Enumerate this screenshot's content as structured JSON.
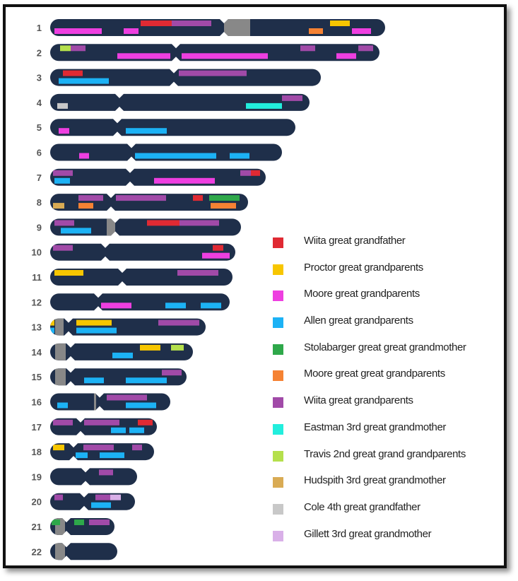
{
  "colors": {
    "chromosome": "#1f2f4a",
    "centromere": "#888888",
    "label": "#555555",
    "frame": "#111111"
  },
  "legend": [
    {
      "key": "wiita_gf",
      "label": "Wiita great grandfather",
      "color": "#e02a33"
    },
    {
      "key": "proctor_gp",
      "label": "Proctor great grandparents",
      "color": "#f7c600"
    },
    {
      "key": "moore_gp",
      "label": "Moore great grandparents",
      "color": "#ee3fe0"
    },
    {
      "key": "allen_gp",
      "label": "Allen great grandparents",
      "color": "#1cb2f5"
    },
    {
      "key": "stolabarger_ggm",
      "label": "Stolabarger great great grandmother",
      "color": "#2ea84a"
    },
    {
      "key": "moore_ggp",
      "label": "Moore great great grandparents",
      "color": "#f58233"
    },
    {
      "key": "wiita_gp",
      "label": "Wiita great grandparents",
      "color": "#a14aa8"
    },
    {
      "key": "eastman_3gm",
      "label": "Eastman 3rd great grandmother",
      "color": "#22eedd"
    },
    {
      "key": "travis_2ggp",
      "label": "Travis 2nd great grand grandparents",
      "color": "#b5e04c"
    },
    {
      "key": "hudspith_3gm",
      "label": "Hudspith 3rd great grandmother",
      "color": "#d9ab54"
    },
    {
      "key": "cole_4gf",
      "label": "Cole 4th great grandfather",
      "color": "#c8c8c8"
    },
    {
      "key": "gillett_3gm",
      "label": "Gillett 3rd great grandmother",
      "color": "#d9b0e8"
    }
  ],
  "chromosomes": [
    {
      "label": "1",
      "length": 474,
      "centromere": 246,
      "block": [
        246,
        37
      ],
      "segments": [
        {
          "key": "wiita_gf",
          "start": 128,
          "end": 172,
          "lane": "top"
        },
        {
          "key": "wiita_gp",
          "start": 172,
          "end": 228,
          "lane": "top"
        },
        {
          "key": "moore_gp",
          "start": 6,
          "end": 73,
          "lane": "bottom"
        },
        {
          "key": "moore_gp",
          "start": 104,
          "end": 125,
          "lane": "bottom"
        },
        {
          "key": "proctor_gp",
          "start": 396,
          "end": 424,
          "lane": "top"
        },
        {
          "key": "moore_ggp",
          "start": 366,
          "end": 386,
          "lane": "bottom"
        },
        {
          "key": "moore_gp",
          "start": 427,
          "end": 454,
          "lane": "bottom"
        }
      ]
    },
    {
      "label": "2",
      "length": 466,
      "centromere": 178,
      "segments": [
        {
          "key": "travis_2ggp",
          "start": 14,
          "end": 29,
          "lane": "top"
        },
        {
          "key": "wiita_gp",
          "start": 29,
          "end": 50,
          "lane": "top"
        },
        {
          "key": "moore_gp",
          "start": 95,
          "end": 170,
          "lane": "bottom"
        },
        {
          "key": "moore_gp",
          "start": 186,
          "end": 308,
          "lane": "bottom"
        },
        {
          "key": "wiita_gp",
          "start": 354,
          "end": 375,
          "lane": "top"
        },
        {
          "key": "wiita_gp",
          "start": 436,
          "end": 457,
          "lane": "top"
        },
        {
          "key": "moore_gp",
          "start": 405,
          "end": 433,
          "lane": "bottom"
        }
      ]
    },
    {
      "label": "3",
      "length": 383,
      "centromere": 175,
      "segments": [
        {
          "key": "wiita_gf",
          "start": 18,
          "end": 46,
          "lane": "top"
        },
        {
          "key": "allen_gp",
          "start": 12,
          "end": 83,
          "lane": "bottom"
        },
        {
          "key": "wiita_gp",
          "start": 182,
          "end": 278,
          "lane": "top"
        }
      ]
    },
    {
      "label": "4",
      "length": 367,
      "centromere": 98,
      "segments": [
        {
          "key": "cole_4gf",
          "start": 10,
          "end": 25,
          "lane": "bottom"
        },
        {
          "key": "eastman_3gm",
          "start": 277,
          "end": 328,
          "lane": "bottom"
        },
        {
          "key": "wiita_gp",
          "start": 328,
          "end": 357,
          "lane": "top"
        }
      ]
    },
    {
      "label": "5",
      "length": 347,
      "centromere": 95,
      "segments": [
        {
          "key": "moore_gp",
          "start": 12,
          "end": 27,
          "lane": "bottom"
        },
        {
          "key": "allen_gp",
          "start": 107,
          "end": 165,
          "lane": "bottom"
        }
      ]
    },
    {
      "label": "6",
      "length": 328,
      "centromere": 115,
      "segments": [
        {
          "key": "moore_gp",
          "start": 41,
          "end": 55,
          "lane": "bottom"
        },
        {
          "key": "allen_gp",
          "start": 120,
          "end": 235,
          "lane": "bottom"
        },
        {
          "key": "allen_gp",
          "start": 254,
          "end": 282,
          "lane": "bottom"
        }
      ]
    },
    {
      "label": "7",
      "length": 305,
      "centromere": 113,
      "segments": [
        {
          "key": "wiita_gp",
          "start": 4,
          "end": 32,
          "lane": "top"
        },
        {
          "key": "allen_gp",
          "start": 6,
          "end": 28,
          "lane": "bottom"
        },
        {
          "key": "moore_gp",
          "start": 147,
          "end": 233,
          "lane": "bottom"
        },
        {
          "key": "wiita_gp",
          "start": 269,
          "end": 284,
          "lane": "top"
        },
        {
          "key": "wiita_gf",
          "start": 284,
          "end": 297,
          "lane": "top"
        }
      ]
    },
    {
      "label": "8",
      "length": 280,
      "centromere": 86,
      "segments": [
        {
          "key": "hudspith_3gm",
          "start": 4,
          "end": 20,
          "lane": "bottom"
        },
        {
          "key": "wiita_gp",
          "start": 40,
          "end": 75,
          "lane": "top"
        },
        {
          "key": "moore_ggp",
          "start": 40,
          "end": 61,
          "lane": "bottom"
        },
        {
          "key": "wiita_gp",
          "start": 93,
          "end": 164,
          "lane": "top"
        },
        {
          "key": "wiita_gf",
          "start": 202,
          "end": 216,
          "lane": "top"
        },
        {
          "key": "stolabarger_ggm",
          "start": 225,
          "end": 268,
          "lane": "top"
        },
        {
          "key": "moore_ggp",
          "start": 227,
          "end": 263,
          "lane": "bottom"
        }
      ]
    },
    {
      "label": "9",
      "length": 270,
      "centromere": 92,
      "block": [
        80,
        12
      ],
      "segments": [
        {
          "key": "wiita_gp",
          "start": 6,
          "end": 34,
          "lane": "top"
        },
        {
          "key": "allen_gp",
          "start": 15,
          "end": 58,
          "lane": "bottom"
        },
        {
          "key": "wiita_gf",
          "start": 137,
          "end": 183,
          "lane": "top"
        },
        {
          "key": "wiita_gp",
          "start": 183,
          "end": 239,
          "lane": "top"
        }
      ]
    },
    {
      "label": "10",
      "length": 262,
      "centromere": 78,
      "segments": [
        {
          "key": "wiita_gp",
          "start": 4,
          "end": 32,
          "lane": "top"
        },
        {
          "key": "wiita_gf",
          "start": 230,
          "end": 245,
          "lane": "top"
        },
        {
          "key": "moore_gp",
          "start": 215,
          "end": 254,
          "lane": "bottom"
        }
      ]
    },
    {
      "label": "11",
      "length": 258,
      "centromere": 102,
      "segments": [
        {
          "key": "proctor_gp",
          "start": 6,
          "end": 47,
          "lane": "top"
        },
        {
          "key": "wiita_gp",
          "start": 180,
          "end": 238,
          "lane": "top"
        }
      ]
    },
    {
      "label": "12",
      "length": 254,
      "centromere": 68,
      "segments": [
        {
          "key": "moore_gp",
          "start": 72,
          "end": 115,
          "lane": "bottom"
        },
        {
          "key": "allen_gp",
          "start": 163,
          "end": 192,
          "lane": "bottom"
        },
        {
          "key": "allen_gp",
          "start": 213,
          "end": 242,
          "lane": "bottom"
        }
      ]
    },
    {
      "label": "13",
      "length": 220,
      "centromere": 26,
      "block": [
        7,
        12
      ],
      "segments": [
        {
          "key": "proctor_gp",
          "start": 0,
          "end": 6,
          "lane": "top"
        },
        {
          "key": "proctor_gp",
          "start": 37,
          "end": 87,
          "lane": "top"
        },
        {
          "key": "allen_gp",
          "start": 0,
          "end": 6,
          "lane": "bottom"
        },
        {
          "key": "allen_gp",
          "start": 37,
          "end": 94,
          "lane": "bottom"
        },
        {
          "key": "wiita_gp",
          "start": 153,
          "end": 211,
          "lane": "top"
        }
      ]
    },
    {
      "label": "14",
      "length": 202,
      "centromere": 29,
      "block": [
        7,
        15
      ],
      "segments": [
        {
          "key": "proctor_gp",
          "start": 127,
          "end": 156,
          "lane": "top"
        },
        {
          "key": "travis_2ggp",
          "start": 171,
          "end": 189,
          "lane": "top"
        },
        {
          "key": "allen_gp",
          "start": 88,
          "end": 117,
          "lane": "bottom"
        }
      ]
    },
    {
      "label": "15",
      "length": 193,
      "centromere": 29,
      "block": [
        7,
        15
      ],
      "segments": [
        {
          "key": "wiita_gp",
          "start": 158,
          "end": 186,
          "lane": "top"
        },
        {
          "key": "allen_gp",
          "start": 48,
          "end": 76,
          "lane": "bottom"
        },
        {
          "key": "allen_gp",
          "start": 107,
          "end": 165,
          "lane": "bottom"
        }
      ]
    },
    {
      "label": "16",
      "length": 170,
      "centromere": 70,
      "block": [
        62,
        3
      ],
      "segments": [
        {
          "key": "wiita_gp",
          "start": 80,
          "end": 137,
          "lane": "top"
        },
        {
          "key": "allen_gp",
          "start": 10,
          "end": 25,
          "lane": "bottom"
        },
        {
          "key": "allen_gp",
          "start": 107,
          "end": 150,
          "lane": "bottom"
        }
      ]
    },
    {
      "label": "17",
      "length": 151,
      "centromere": 43,
      "segments": [
        {
          "key": "wiita_gp",
          "start": 4,
          "end": 32,
          "lane": "top"
        },
        {
          "key": "wiita_gp",
          "start": 48,
          "end": 98,
          "lane": "top"
        },
        {
          "key": "wiita_gf",
          "start": 124,
          "end": 145,
          "lane": "top"
        },
        {
          "key": "allen_gp",
          "start": 86,
          "end": 107,
          "lane": "bottom"
        },
        {
          "key": "allen_gp",
          "start": 112,
          "end": 133,
          "lane": "bottom"
        }
      ]
    },
    {
      "label": "18",
      "length": 147,
      "centromere": 33,
      "segments": [
        {
          "key": "proctor_gp",
          "start": 4,
          "end": 20,
          "lane": "top"
        },
        {
          "key": "wiita_gp",
          "start": 47,
          "end": 90,
          "lane": "top"
        },
        {
          "key": "wiita_gp",
          "start": 116,
          "end": 130,
          "lane": "top"
        },
        {
          "key": "allen_gp",
          "start": 36,
          "end": 53,
          "lane": "bottom"
        },
        {
          "key": "allen_gp",
          "start": 70,
          "end": 105,
          "lane": "bottom"
        }
      ]
    },
    {
      "label": "19",
      "length": 123,
      "centromere": 50,
      "segments": [
        {
          "key": "wiita_gp",
          "start": 69,
          "end": 89,
          "lane": "top"
        }
      ]
    },
    {
      "label": "20",
      "length": 120,
      "centromere": 48,
      "segments": [
        {
          "key": "wiita_gp",
          "start": 6,
          "end": 18,
          "lane": "top"
        },
        {
          "key": "wiita_gp",
          "start": 64,
          "end": 85,
          "lane": "top"
        },
        {
          "key": "gillett_3gm",
          "start": 85,
          "end": 100,
          "lane": "top"
        },
        {
          "key": "allen_gp",
          "start": 58,
          "end": 86,
          "lane": "bottom"
        }
      ]
    },
    {
      "label": "21",
      "length": 91,
      "centromere": 23,
      "block": [
        7,
        14
      ],
      "segments": [
        {
          "key": "stolabarger_ggm",
          "start": 2,
          "end": 14,
          "lane": "top"
        },
        {
          "key": "stolabarger_ggm",
          "start": 34,
          "end": 48,
          "lane": "top"
        },
        {
          "key": "wiita_gp",
          "start": 55,
          "end": 84,
          "lane": "top"
        }
      ]
    },
    {
      "label": "22",
      "length": 95,
      "centromere": 23,
      "block": [
        7,
        14
      ],
      "segments": []
    }
  ]
}
